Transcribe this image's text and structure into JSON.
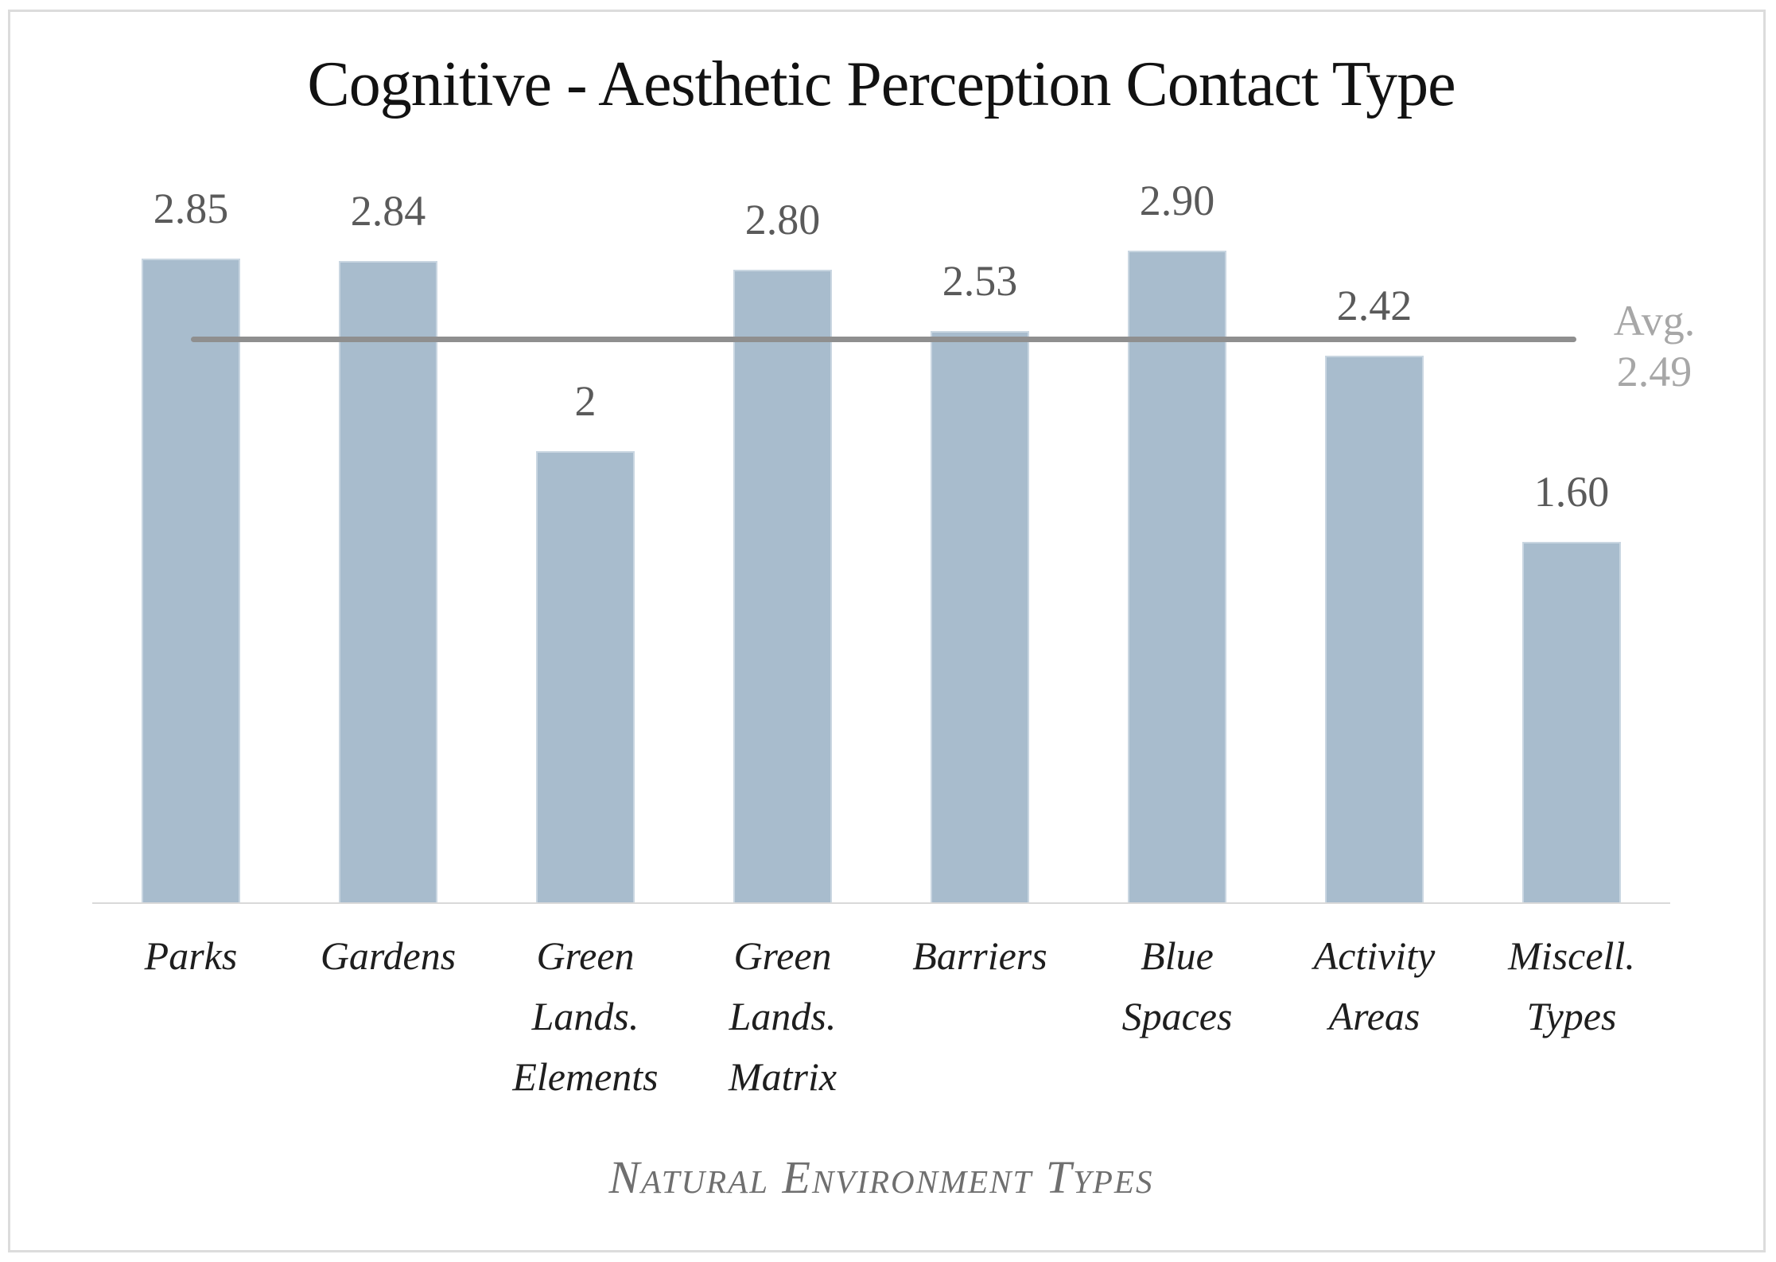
{
  "chart_data": {
    "type": "bar",
    "title": "Cognitive - Aesthetic Perception Contact Type",
    "xlabel": "Natural Environment Types",
    "ylabel": "",
    "categories": [
      "Parks",
      "Gardens",
      "Green Lands. Elements",
      "Green Lands. Matrix",
      "Barriers",
      "Blue Spaces",
      "Activity Areas",
      "Miscell. Types"
    ],
    "tick_labels": [
      "Parks",
      "Gardens",
      "Green\nLands.\nElements",
      "Green\nLands.\nMatrix",
      "Barriers",
      "Blue\nSpaces",
      "Activity\nAreas",
      "Miscell.\nTypes"
    ],
    "values": [
      2.85,
      2.84,
      2,
      2.8,
      2.53,
      2.9,
      2.42,
      1.6
    ],
    "value_labels": [
      "2.85",
      "2.84",
      "2",
      "2.80",
      "2.53",
      "2.90",
      "2.42",
      "1.60"
    ],
    "average": 2.49,
    "average_label": "Avg.\n2.49",
    "ylim": [
      0,
      3.2
    ],
    "grid": false,
    "legend": false,
    "avg_line_span": "from first bar center to last bar center"
  },
  "colors": {
    "bar_fill": "#a8bccd",
    "bar_edge": "#c9d6e1",
    "avg_line": "#8f8f8f",
    "axis_line": "#d9d9d9",
    "frame_border": "#dcdcdc",
    "title_color": "#121212",
    "value_label_color": "#5a5a5a",
    "avg_label_color": "#a7a7a7",
    "tick_label_color": "#1e1e1e",
    "axis_title_color": "#6f6f6f"
  }
}
